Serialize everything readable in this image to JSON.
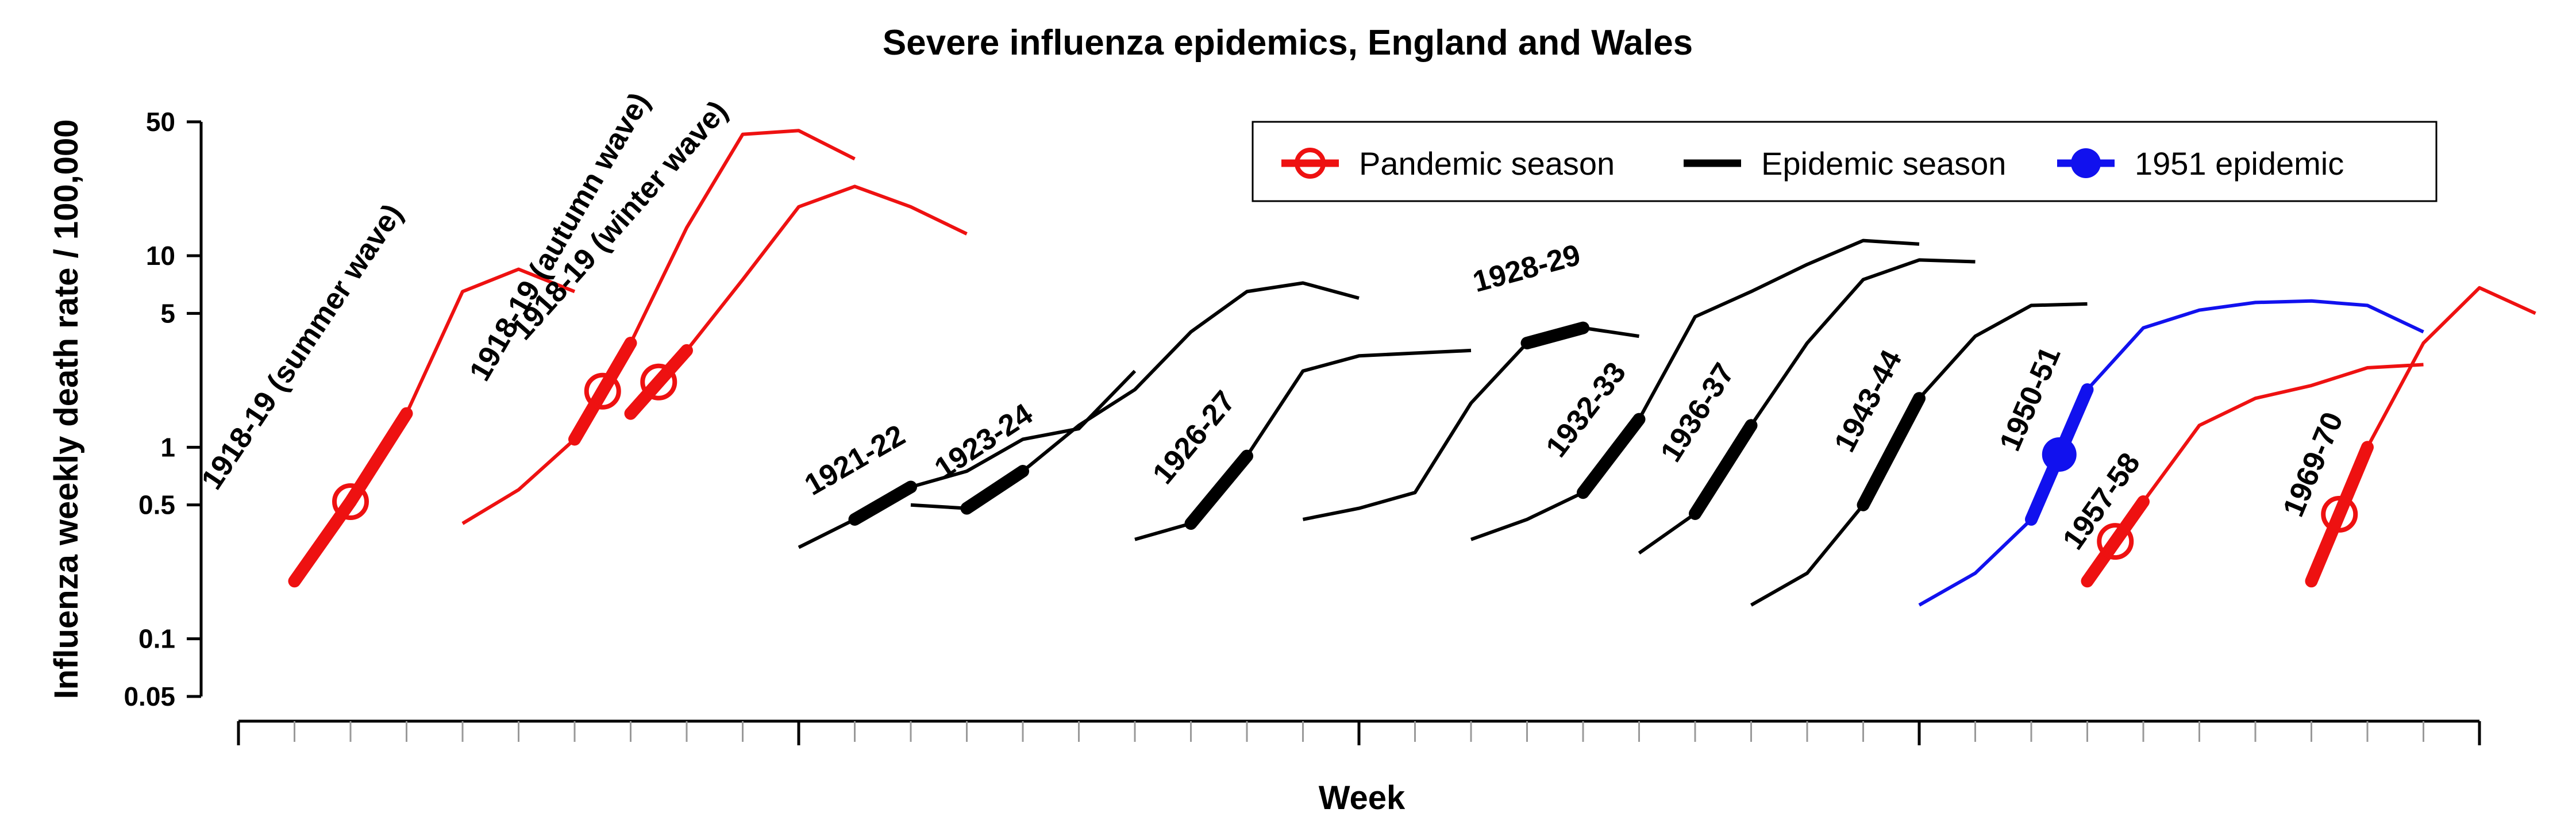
{
  "chart_data": {
    "type": "line",
    "title": "Severe influenza epidemics, England and Wales",
    "xlabel": "Week",
    "ylabel": "Influenza weekly death rate / 100,000",
    "y_scale": "log",
    "ylim": [
      0.05,
      50
    ],
    "y_ticks": [
      "50",
      "10",
      "5",
      "1",
      "0.5",
      "0.1",
      "0.05"
    ],
    "y_tick_values": [
      50,
      10,
      5,
      1,
      0.5,
      0.1,
      0.05
    ],
    "x_tick_labels": "none",
    "grid": false,
    "legend_position": "top-right",
    "legend": [
      {
        "label": "Pandemic season",
        "color": "#ee1111",
        "marker": "open-circle"
      },
      {
        "label": "Epidemic season",
        "color": "#000000",
        "marker": "none"
      },
      {
        "label": "1951 epidemic",
        "color": "#1111ee",
        "marker": "filled-circle"
      }
    ],
    "series": [
      {
        "name": "1918-19 (summer wave)",
        "kind": "pandemic",
        "color": "#ee1111",
        "x": [
          1,
          2,
          3,
          4,
          5,
          6
        ],
        "y": [
          0.2,
          0.52,
          1.5,
          6.5,
          8.5,
          6.5
        ],
        "bold_range": [
          1,
          3
        ],
        "marker_x": 2
      },
      {
        "name": "1918-19 (autumn wave)",
        "kind": "pandemic",
        "color": "#ee1111",
        "x": [
          4,
          5,
          6,
          7,
          8,
          9,
          10,
          11
        ],
        "y": [
          0.4,
          0.6,
          1.1,
          3.5,
          14,
          43,
          45,
          32
        ],
        "bold_range": [
          6,
          7
        ],
        "marker_x": 6.5
      },
      {
        "name": "1918-19 (winter wave)",
        "kind": "pandemic",
        "color": "#ee1111",
        "x": [
          7,
          8,
          9,
          10,
          11,
          12,
          13
        ],
        "y": [
          1.5,
          3.2,
          7.5,
          18,
          23,
          18,
          13
        ],
        "bold_range": [
          7,
          8
        ],
        "marker_x": 7.5
      },
      {
        "name": "1921-22",
        "kind": "epidemic",
        "color": "#000000",
        "x": [
          10,
          11,
          12,
          13,
          14,
          15,
          16
        ],
        "y": [
          0.3,
          0.42,
          0.62,
          0.75,
          1.1,
          1.25,
          2.5
        ],
        "bold_range": [
          11,
          12
        ]
      },
      {
        "name": "1923-24",
        "kind": "epidemic",
        "color": "#000000",
        "x": [
          12,
          13,
          14,
          15,
          16,
          17,
          18,
          19,
          20
        ],
        "y": [
          0.5,
          0.48,
          0.75,
          1.3,
          2.0,
          4.0,
          6.5,
          7.2,
          6.0
        ],
        "bold_range": [
          13,
          14
        ]
      },
      {
        "name": "1926-27",
        "kind": "epidemic",
        "color": "#000000",
        "x": [
          16,
          17,
          18,
          19,
          20,
          21,
          22
        ],
        "y": [
          0.33,
          0.4,
          0.9,
          2.5,
          3.0,
          3.1,
          3.2
        ],
        "bold_range": [
          17,
          18
        ]
      },
      {
        "name": "1928-29",
        "kind": "epidemic",
        "color": "#000000",
        "x": [
          19,
          20,
          21,
          22,
          23,
          24,
          25
        ],
        "y": [
          0.42,
          0.48,
          0.58,
          1.7,
          3.5,
          4.2,
          3.8
        ],
        "bold_range": [
          23,
          24
        ]
      },
      {
        "name": "1932-33",
        "kind": "epidemic",
        "color": "#000000",
        "x": [
          22,
          23,
          24,
          25,
          26,
          27,
          28,
          29,
          30
        ],
        "y": [
          0.33,
          0.42,
          0.58,
          1.4,
          4.8,
          6.5,
          9.0,
          12,
          11.5
        ],
        "bold_range": [
          24,
          25
        ]
      },
      {
        "name": "1936-37",
        "kind": "epidemic",
        "color": "#000000",
        "x": [
          25,
          26,
          27,
          28,
          29,
          30,
          31
        ],
        "y": [
          0.28,
          0.45,
          1.3,
          3.5,
          7.5,
          9.5,
          9.3
        ],
        "bold_range": [
          26,
          27
        ]
      },
      {
        "name": "1943-44",
        "kind": "epidemic",
        "color": "#000000",
        "x": [
          27,
          28,
          29,
          30,
          31,
          32,
          33
        ],
        "y": [
          0.15,
          0.22,
          0.5,
          1.8,
          3.8,
          5.5,
          5.6
        ],
        "bold_range": [
          29,
          30
        ]
      },
      {
        "name": "1950-51",
        "kind": "epidemic_1951",
        "color": "#1111ee",
        "x": [
          30,
          31,
          32,
          33,
          34,
          35,
          36,
          37,
          38,
          39
        ],
        "y": [
          0.15,
          0.22,
          0.42,
          2.0,
          4.2,
          5.2,
          5.7,
          5.8,
          5.5,
          4.0
        ],
        "bold_range": [
          32,
          33
        ],
        "marker_x": 32.5
      },
      {
        "name": "1957-58",
        "kind": "pandemic",
        "color": "#ee1111",
        "x": [
          33,
          34,
          35,
          36,
          37,
          38,
          39
        ],
        "y": [
          0.2,
          0.52,
          1.3,
          1.8,
          2.1,
          2.6,
          2.7
        ],
        "bold_range": [
          33,
          34
        ],
        "marker_x": 33.5
      },
      {
        "name": "1969-70",
        "kind": "pandemic",
        "color": "#ee1111",
        "x": [
          37,
          38,
          39,
          40,
          41
        ],
        "y": [
          0.2,
          1.0,
          3.5,
          6.8,
          5.0
        ],
        "bold_range": [
          37,
          38
        ],
        "marker_x": 37.5
      }
    ]
  }
}
